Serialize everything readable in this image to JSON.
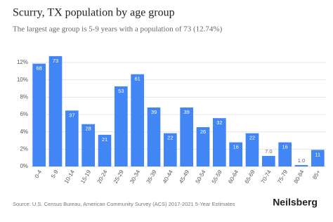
{
  "chart_data": {
    "type": "bar",
    "title": "Scurry, TX population by age group",
    "subtitle": "The largest age group is 5-9 years with a population of 73 (12.74%)",
    "categories": [
      "0-4",
      "5-9",
      "10-14",
      "15-19",
      "20-24",
      "25-29",
      "30-34",
      "35-39",
      "40-44",
      "45-49",
      "50-54",
      "55-59",
      "60-64",
      "65-69",
      "70-74",
      "75-79",
      "80-84",
      "85+"
    ],
    "values": [
      11.87,
      12.74,
      6.46,
      4.89,
      3.66,
      9.25,
      10.65,
      6.81,
      3.84,
      6.81,
      4.54,
      5.58,
      2.79,
      3.84,
      1.22,
      2.79,
      0.17,
      1.92
    ],
    "value_labels": [
      "68",
      "73",
      "37",
      "28",
      "21",
      "53",
      "61",
      "39",
      "22",
      "39",
      "26",
      "32",
      "16",
      "22",
      "7.0",
      "16",
      "1.0",
      "11"
    ],
    "color": "#4285f4",
    "ylim": [
      0,
      13.5
    ],
    "yticks": [
      {
        "value": 0,
        "label": "0%"
      },
      {
        "value": 2,
        "label": "2%"
      },
      {
        "value": 4,
        "label": "4%"
      },
      {
        "value": 6,
        "label": "6%"
      },
      {
        "value": 8,
        "label": "8%"
      },
      {
        "value": 10,
        "label": "10%"
      },
      {
        "value": 12,
        "label": "12%"
      }
    ],
    "grid": true,
    "source": "Source: U.S. Census Bureau, American Community Survey (ACS) 2017-2021 5-Year Estimates",
    "brand": "Neilsberg"
  }
}
